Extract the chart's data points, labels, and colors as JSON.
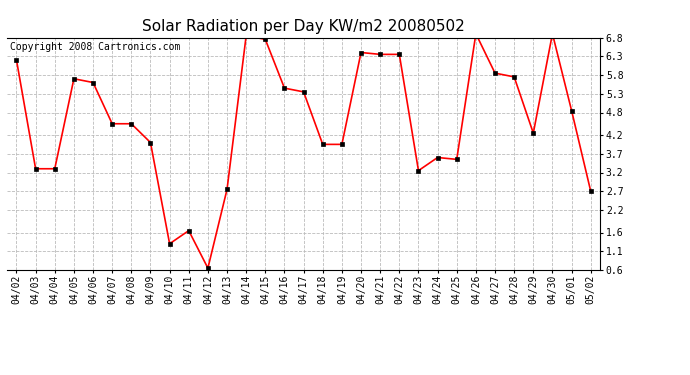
{
  "title": "Solar Radiation per Day KW/m2 20080502",
  "copyright": "Copyright 2008 Cartronics.com",
  "dates": [
    "04/02",
    "04/03",
    "04/04",
    "04/05",
    "04/06",
    "04/07",
    "04/08",
    "04/09",
    "04/10",
    "04/11",
    "04/12",
    "04/13",
    "04/14",
    "04/15",
    "04/16",
    "04/17",
    "04/18",
    "04/19",
    "04/20",
    "04/21",
    "04/22",
    "04/23",
    "04/24",
    "04/25",
    "04/26",
    "04/27",
    "04/28",
    "04/29",
    "04/30",
    "05/01",
    "05/02"
  ],
  "values": [
    6.2,
    3.3,
    3.3,
    5.7,
    5.6,
    4.5,
    4.5,
    4.0,
    1.3,
    1.65,
    0.65,
    2.75,
    6.85,
    6.75,
    5.45,
    5.35,
    3.95,
    3.95,
    6.4,
    6.35,
    6.35,
    3.25,
    3.6,
    3.55,
    6.9,
    5.85,
    5.75,
    4.25,
    6.9,
    4.85,
    2.7
  ],
  "line_color": "#FF0000",
  "marker": "s",
  "markersize": 3,
  "background_color": "#FFFFFF",
  "plot_bg_color": "#FFFFFF",
  "grid_color": "#BBBBBB",
  "ylim": [
    0.6,
    6.8
  ],
  "yticks": [
    0.6,
    1.1,
    1.6,
    2.2,
    2.7,
    3.2,
    3.7,
    4.2,
    4.8,
    5.3,
    5.8,
    6.3,
    6.8
  ],
  "title_fontsize": 11,
  "copyright_fontsize": 7,
  "tick_fontsize": 7
}
